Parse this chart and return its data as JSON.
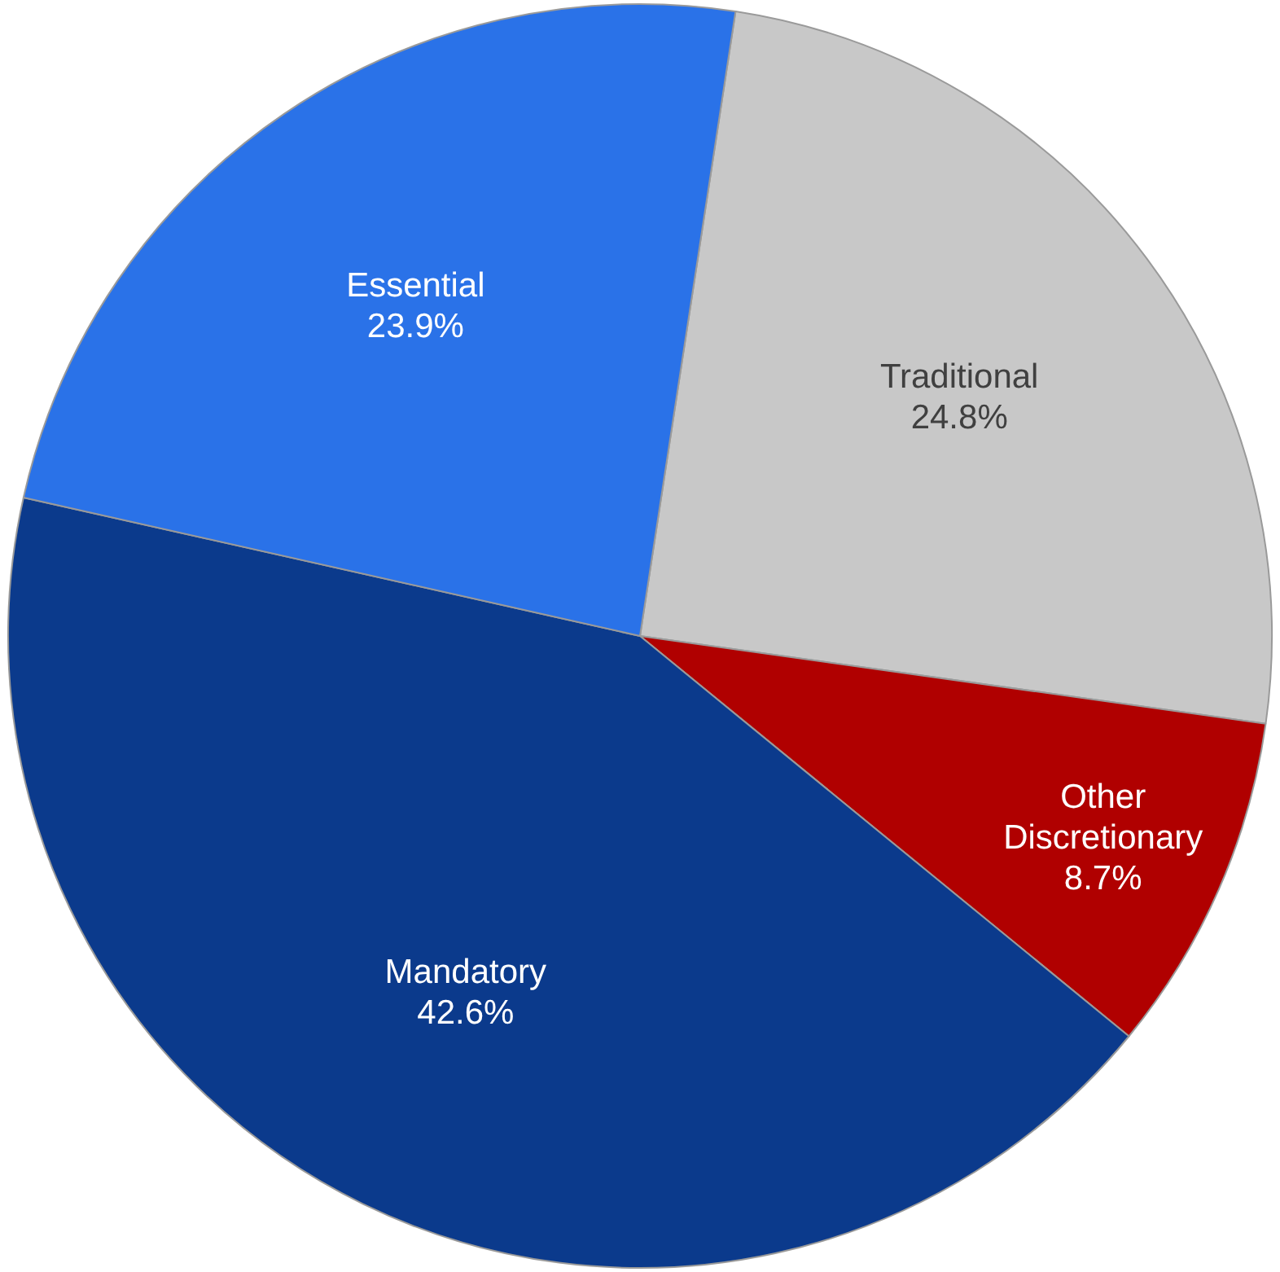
{
  "chart_data": {
    "type": "pie",
    "categories": [
      "Traditional",
      "Other Discretionary",
      "Mandatory",
      "Essential"
    ],
    "values": [
      24.8,
      8.7,
      42.6,
      23.9
    ],
    "colors": [
      "#c8c8c8",
      "#b00000",
      "#0b3a8c",
      "#2a72e8"
    ],
    "value_labels": [
      "24.8%",
      "8.7%",
      "42.6%",
      "23.9%"
    ],
    "legend": false
  }
}
